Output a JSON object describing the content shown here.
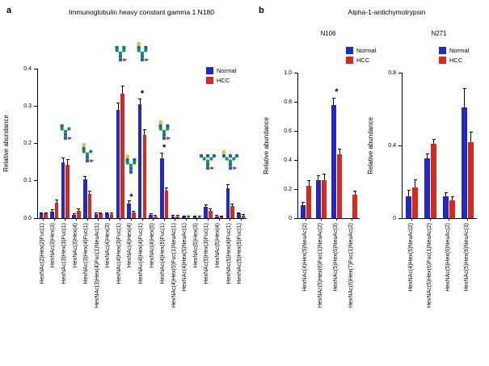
{
  "figure": {
    "panel_a_label": "a",
    "panel_b_label": "b",
    "panel_b_title": "Alpha-1-antichymotrypsin"
  },
  "legend": {
    "items": [
      {
        "label": "Normal",
        "color": "#2128c4"
      },
      {
        "label": "HCC",
        "color": "#d62a1e"
      }
    ]
  },
  "colors": {
    "normal": "#2128c4",
    "hcc": "#d62a1e",
    "glycan_glcnac_blue": "#0072BC",
    "glycan_mannose_green": "#00A651",
    "glycan_galactose_yellow": "#FFD400",
    "glycan_fucose_red": "#ED1C24"
  },
  "chart_data": [
    {
      "id": "chart-a",
      "type": "bar",
      "title": "Immunoglobulin heavy constant gamma 1 N180",
      "ylabel": "Relative abundance",
      "ylim": [
        0,
        0.4
      ],
      "yticks": [
        0,
        0.1,
        0.2,
        0.3,
        0.4
      ],
      "ytick_labels": [
        "0.0",
        "0.1",
        "0.2",
        "0.3",
        "0.4"
      ],
      "categories": [
        "HexNAc(2)Hex(2)Fuc(1)",
        "HexNAc(3)Hex(3)",
        "HexNAc(3)Hex(3)Fuc(1)",
        "HexNAc(3)Hex(4)",
        "HexNAc(3)Hex(4)Fuc(1)",
        "HexNAc(3)Hex(4)Fuc(1)NeuAc(1)",
        "HexNAc(4)Hex(3)",
        "HexNAc(4)Hex(3)Fuc(1)",
        "HexNAc(4)Hex(4)",
        "HexNAc(4)Hex(4)Fuc(1)",
        "HexNAc(4)Hex(5)",
        "HexNAc(4)Hex(5)Fuc(1)",
        "HexNAc(4)Hex(5)Fuc(1)NeuAc(1)",
        "HexNAc(4)Hex(5)NeuAc(1)",
        "HexNAc(5)Hex(3)",
        "HexNAc(5)Hex(3)Fuc(1)",
        "HexNAc(5)Hex(4)",
        "HexNAc(5)Hex(4)Fuc(1)",
        "HexNAc(5)Hex(5)Fuc(1)"
      ],
      "series": [
        {
          "name": "Normal",
          "color": "#2128c4",
          "values": [
            0.012,
            0.018,
            0.15,
            0.008,
            0.103,
            0.01,
            0.012,
            0.29,
            0.04,
            0.305,
            0.008,
            0.16,
            0.005,
            0.004,
            0.004,
            0.03,
            0.005,
            0.08,
            0.012
          ],
          "errors": [
            0.002,
            0.003,
            0.01,
            0.002,
            0.008,
            0.002,
            0.002,
            0.018,
            0.005,
            0.012,
            0.002,
            0.012,
            0.001,
            0.001,
            0.001,
            0.004,
            0.001,
            0.008,
            0.002
          ]
        },
        {
          "name": "HCC",
          "color": "#d62a1e",
          "values": [
            0.012,
            0.042,
            0.143,
            0.02,
            0.065,
            0.012,
            0.01,
            0.333,
            0.015,
            0.222,
            0.005,
            0.073,
            0.005,
            0.003,
            0.003,
            0.02,
            0.004,
            0.032,
            0.006
          ],
          "errors": [
            0.002,
            0.006,
            0.012,
            0.003,
            0.006,
            0.002,
            0.002,
            0.02,
            0.003,
            0.014,
            0.001,
            0.008,
            0.001,
            0.001,
            0.001,
            0.003,
            0.001,
            0.004,
            0.002
          ]
        }
      ],
      "significance": [
        {
          "category_index": 8,
          "y": 0.055,
          "marker": "*"
        },
        {
          "category_index": 9,
          "y": 0.33,
          "marker": "*"
        },
        {
          "category_index": 11,
          "y": 0.185,
          "marker": "*"
        }
      ],
      "glycan_icons": [
        {
          "category_index": 2,
          "y": 0.205,
          "ant": 1,
          "gal": 0,
          "fuc": 1
        },
        {
          "category_index": 4,
          "y": 0.145,
          "ant": 1,
          "gal": 1,
          "fuc": 1
        },
        {
          "category_index": 7,
          "y": 0.415,
          "ant": 2,
          "gal": 0,
          "fuc": 1
        },
        {
          "category_index": 9,
          "y": 0.415,
          "ant": 2,
          "gal": 1,
          "fuc": 1
        },
        {
          "category_index": 8,
          "y": 0.115,
          "ant": 2,
          "gal": 1,
          "fuc": 0
        },
        {
          "category_index": 11,
          "y": 0.205,
          "ant": 2,
          "gal": 1,
          "fuc": 1
        },
        {
          "category_index": 15,
          "y": 0.125,
          "ant": 3,
          "gal": 0,
          "fuc": 1
        },
        {
          "category_index": 17,
          "y": 0.125,
          "ant": 3,
          "gal": 1,
          "fuc": 1
        }
      ]
    },
    {
      "id": "chart-n106",
      "type": "bar",
      "subtitle": "N106",
      "ylabel": "Relative abundance",
      "ylim": [
        0,
        1.0
      ],
      "yticks": [
        0,
        0.2,
        0.4,
        0.6,
        0.8,
        1.0
      ],
      "ytick_labels": [
        "0",
        "0.2",
        "0.4",
        "0.6",
        "0.8",
        "1.0"
      ],
      "categories": [
        "HexNAc(4)Hex(5)NeuAc(2)",
        "HexNAc(5)Hex(6)Fuc(1)NeuAc(2)",
        "HexNAc(5)Hex(6)NeuAc(3)",
        "HexNAc(6)Hex(7)Fuc(1)NeuAc(2)"
      ],
      "series": [
        {
          "name": "Normal",
          "color": "#2128c4",
          "values": [
            0.09,
            0.26,
            0.78,
            0
          ],
          "errors": [
            0.015,
            0.03,
            0.04,
            0
          ]
        },
        {
          "name": "HCC",
          "color": "#d62a1e",
          "values": [
            0.22,
            0.26,
            0.44,
            0.16
          ],
          "errors": [
            0.035,
            0.04,
            0.03,
            0.025
          ]
        }
      ],
      "significance": [
        {
          "category_index": 2,
          "y": 0.86,
          "marker": "*"
        }
      ],
      "glycan_icons": []
    },
    {
      "id": "chart-n271",
      "type": "bar",
      "subtitle": "N271",
      "ylabel": "Relative abundance",
      "ylim": [
        0,
        0.8
      ],
      "yticks": [
        0,
        0.4,
        0.8
      ],
      "ytick_labels": [
        "0",
        "0.4",
        "0.8"
      ],
      "categories": [
        "HexNAc(4)Hex(5)NeuAc(2)",
        "HexNAc(5)Hex(6)Fuc(1)NeuAc(2)",
        "HexNAc(5)Hex(6)NeuAc(2)",
        "HexNAc(5)Hex(6)NeuAc(3)"
      ],
      "series": [
        {
          "name": "Normal",
          "color": "#2128c4",
          "values": [
            0.12,
            0.33,
            0.12,
            0.61
          ],
          "errors": [
            0.03,
            0.02,
            0.02,
            0.1
          ]
        },
        {
          "name": "HCC",
          "color": "#d62a1e",
          "values": [
            0.17,
            0.41,
            0.1,
            0.42
          ],
          "errors": [
            0.04,
            0.02,
            0.015,
            0.05
          ]
        }
      ],
      "significance": [],
      "glycan_icons": []
    }
  ]
}
